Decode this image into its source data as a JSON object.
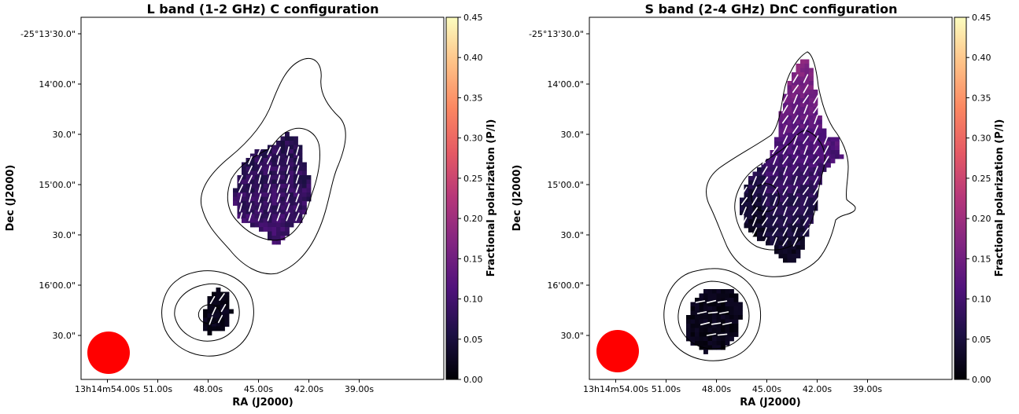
{
  "chart_data": [
    {
      "type": "heatmap",
      "title": "L band (1-2 GHz) C configuration",
      "xlabel": "RA (J2000)",
      "ylabel": "Dec (J2000)",
      "x_ticks": [
        "13h14m54.00s",
        "51.00s",
        "48.00s",
        "45.00s",
        "42.00s",
        "39.00s"
      ],
      "y_ticks": [
        "-25°13'30.0\"",
        "14'00.0\"",
        "30.0\"",
        "15'00.0\"",
        "30.0\"",
        "16'00.0\"",
        "30.0\""
      ],
      "colorbar": {
        "label": "Fractional polarization (P/I)",
        "colormap": "magma",
        "range": [
          0.0,
          0.45
        ],
        "ticks": [
          "0.00",
          "0.05",
          "0.10",
          "0.15",
          "0.20",
          "0.25",
          "0.30",
          "0.35",
          "0.40",
          "0.45"
        ]
      },
      "beam_color": "#ff0000"
    },
    {
      "type": "heatmap",
      "title": "S band (2-4 GHz) DnC configuration",
      "xlabel": "RA (J2000)",
      "ylabel": "Dec (J2000)",
      "x_ticks": [
        "13h14m54.00s",
        "51.00s",
        "48.00s",
        "45.00s",
        "42.00s",
        "39.00s"
      ],
      "y_ticks": [
        "-25°13'30.0\"",
        "14'00.0\"",
        "30.0\"",
        "15'00.0\"",
        "30.0\"",
        "16'00.0\"",
        "30.0\""
      ],
      "colorbar": {
        "label": "Fractional polarization (P/I)",
        "colormap": "magma",
        "range": [
          0.0,
          0.45
        ],
        "ticks": [
          "0.00",
          "0.05",
          "0.10",
          "0.15",
          "0.20",
          "0.25",
          "0.30",
          "0.35",
          "0.40",
          "0.45"
        ]
      },
      "beam_color": "#ff0000"
    }
  ]
}
